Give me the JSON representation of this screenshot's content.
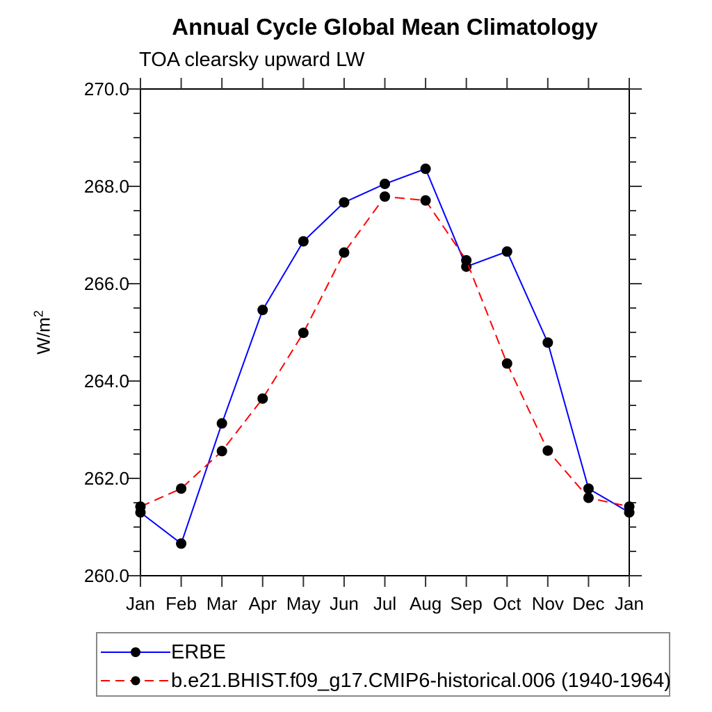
{
  "chart": {
    "ylabel_base": "W/m",
    "ylabel_exp": "2"
  },
  "chart_data": {
    "type": "line",
    "title": "Annual Cycle Global Mean Climatology",
    "subtitle": "TOA clearsky upward LW",
    "ylabel": "W/m2",
    "xlabel": "",
    "x_tick_labels": [
      "Jan",
      "Feb",
      "Mar",
      "Apr",
      "May",
      "Jun",
      "Jul",
      "Aug",
      "Sep",
      "Oct",
      "Nov",
      "Dec",
      "Jan"
    ],
    "y_tick_labels": [
      "260.0",
      "262.0",
      "264.0",
      "266.0",
      "268.0",
      "270.0"
    ],
    "ylim": [
      260.0,
      270.0
    ],
    "y_major_step": 2.0,
    "y_minor_step": 0.5,
    "grid": false,
    "legend_position": "bottom-left",
    "marker_color": "#000000",
    "series": [
      {
        "id": "erbe",
        "name": "ERBE",
        "color": "#0000ff",
        "style": "solid",
        "marker": "circle",
        "values": [
          261.3,
          260.66,
          263.13,
          265.46,
          266.87,
          267.67,
          268.05,
          268.36,
          266.35,
          266.66,
          264.79,
          261.79,
          261.3
        ]
      },
      {
        "id": "model",
        "name": "b.e21.BHIST.f09_g17.CMIP6-historical.006 (1940-1964)",
        "color": "#ff0000",
        "style": "dashed",
        "marker": "circle",
        "values": [
          261.42,
          261.79,
          262.56,
          263.64,
          264.99,
          266.64,
          267.79,
          267.71,
          266.48,
          264.36,
          262.57,
          261.6,
          261.42
        ]
      }
    ]
  }
}
